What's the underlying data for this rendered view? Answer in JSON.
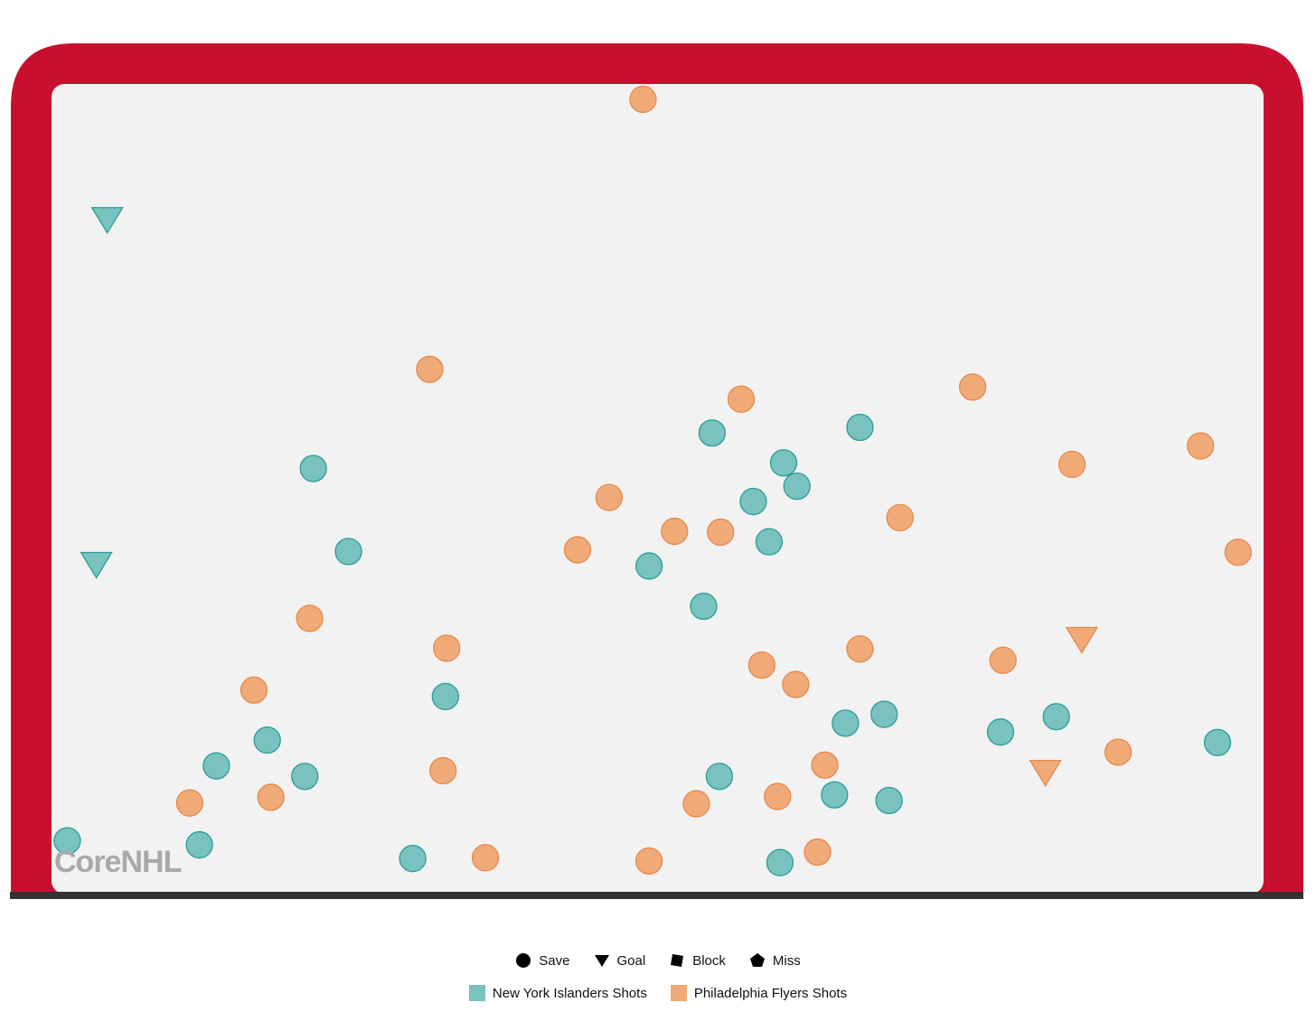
{
  "chart_data": {
    "type": "scatter",
    "title": "",
    "xlabel": "",
    "ylabel": "",
    "xlim": [
      0,
      100
    ],
    "ylim": [
      0,
      100
    ],
    "shape_legend": [
      {
        "label": "Save",
        "shape": "circle"
      },
      {
        "label": "Goal",
        "shape": "triangle-down"
      },
      {
        "label": "Block",
        "shape": "square"
      },
      {
        "label": "Miss",
        "shape": "pentagon"
      }
    ],
    "series": [
      {
        "name": "New York Islanders Shots",
        "color": "#7ac2bf",
        "stroke": "#2a9d97",
        "points": [
          {
            "x": 4.6,
            "y": 83.1,
            "type": "Goal"
          },
          {
            "x": 3.7,
            "y": 40.3,
            "type": "Goal"
          },
          {
            "x": 21.6,
            "y": 52.3,
            "type": "Save"
          },
          {
            "x": 24.5,
            "y": 42.0,
            "type": "Save"
          },
          {
            "x": 32.5,
            "y": 24.0,
            "type": "Save"
          },
          {
            "x": 17.8,
            "y": 18.6,
            "type": "Save"
          },
          {
            "x": 13.6,
            "y": 15.4,
            "type": "Save"
          },
          {
            "x": 20.9,
            "y": 14.1,
            "type": "Save"
          },
          {
            "x": 1.3,
            "y": 6.1,
            "type": "Save"
          },
          {
            "x": 12.2,
            "y": 5.6,
            "type": "Save"
          },
          {
            "x": 29.8,
            "y": 3.9,
            "type": "Save"
          },
          {
            "x": 54.5,
            "y": 56.7,
            "type": "Save"
          },
          {
            "x": 49.3,
            "y": 40.2,
            "type": "Save"
          },
          {
            "x": 53.8,
            "y": 35.2,
            "type": "Save"
          },
          {
            "x": 60.4,
            "y": 53.0,
            "type": "Save"
          },
          {
            "x": 61.5,
            "y": 50.1,
            "type": "Save"
          },
          {
            "x": 57.9,
            "y": 48.2,
            "type": "Save"
          },
          {
            "x": 59.2,
            "y": 43.2,
            "type": "Save"
          },
          {
            "x": 66.7,
            "y": 57.4,
            "type": "Save"
          },
          {
            "x": 55.1,
            "y": 14.1,
            "type": "Save"
          },
          {
            "x": 65.5,
            "y": 20.7,
            "type": "Save"
          },
          {
            "x": 68.7,
            "y": 21.8,
            "type": "Save"
          },
          {
            "x": 64.6,
            "y": 11.8,
            "type": "Save"
          },
          {
            "x": 69.1,
            "y": 11.1,
            "type": "Save"
          },
          {
            "x": 60.1,
            "y": 3.4,
            "type": "Save"
          },
          {
            "x": 78.3,
            "y": 19.6,
            "type": "Save"
          },
          {
            "x": 82.9,
            "y": 21.5,
            "type": "Save"
          },
          {
            "x": 96.2,
            "y": 18.3,
            "type": "Save"
          }
        ]
      },
      {
        "name": "Philadelphia Flyers Shots",
        "color": "#f0aa78",
        "stroke": "#e8894a",
        "points": [
          {
            "x": 48.8,
            "y": 98.1,
            "type": "Save"
          },
          {
            "x": 31.2,
            "y": 64.6,
            "type": "Save"
          },
          {
            "x": 56.9,
            "y": 60.9,
            "type": "Save"
          },
          {
            "x": 76.0,
            "y": 62.4,
            "type": "Save"
          },
          {
            "x": 84.2,
            "y": 52.8,
            "type": "Save"
          },
          {
            "x": 94.8,
            "y": 55.1,
            "type": "Save"
          },
          {
            "x": 46.0,
            "y": 48.7,
            "type": "Save"
          },
          {
            "x": 70.0,
            "y": 46.2,
            "type": "Save"
          },
          {
            "x": 43.4,
            "y": 42.2,
            "type": "Save"
          },
          {
            "x": 51.4,
            "y": 44.5,
            "type": "Save"
          },
          {
            "x": 55.2,
            "y": 44.4,
            "type": "Save"
          },
          {
            "x": 97.9,
            "y": 41.9,
            "type": "Save"
          },
          {
            "x": 21.3,
            "y": 33.7,
            "type": "Save"
          },
          {
            "x": 32.6,
            "y": 30.0,
            "type": "Save"
          },
          {
            "x": 16.7,
            "y": 24.8,
            "type": "Save"
          },
          {
            "x": 58.6,
            "y": 27.9,
            "type": "Save"
          },
          {
            "x": 61.4,
            "y": 25.5,
            "type": "Save"
          },
          {
            "x": 66.7,
            "y": 29.9,
            "type": "Save"
          },
          {
            "x": 78.5,
            "y": 28.5,
            "type": "Save"
          },
          {
            "x": 85.0,
            "y": 31.0,
            "type": "Goal"
          },
          {
            "x": 82.0,
            "y": 14.5,
            "type": "Goal"
          },
          {
            "x": 32.3,
            "y": 14.8,
            "type": "Save"
          },
          {
            "x": 63.8,
            "y": 15.5,
            "type": "Save"
          },
          {
            "x": 88.0,
            "y": 17.1,
            "type": "Save"
          },
          {
            "x": 11.4,
            "y": 10.8,
            "type": "Save"
          },
          {
            "x": 18.1,
            "y": 11.5,
            "type": "Save"
          },
          {
            "x": 53.2,
            "y": 10.7,
            "type": "Save"
          },
          {
            "x": 59.9,
            "y": 11.6,
            "type": "Save"
          },
          {
            "x": 35.8,
            "y": 4.0,
            "type": "Save"
          },
          {
            "x": 49.3,
            "y": 3.6,
            "type": "Save"
          },
          {
            "x": 63.2,
            "y": 4.7,
            "type": "Save"
          }
        ]
      }
    ]
  },
  "watermark": "CoreNHL",
  "colors": {
    "post": "#c8102e",
    "ice": "#f2f2f2",
    "goal_line": "#333333"
  }
}
